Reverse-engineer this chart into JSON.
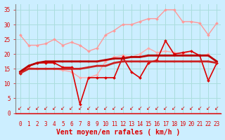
{
  "x": [
    0,
    1,
    2,
    3,
    4,
    5,
    6,
    7,
    8,
    9,
    10,
    11,
    12,
    13,
    14,
    15,
    16,
    17,
    18,
    19,
    20,
    21,
    22,
    23
  ],
  "series": [
    {
      "name": "line1_light_pink_upper",
      "color": "#ff9999",
      "lw": 1.0,
      "marker": "D",
      "markersize": 2.0,
      "y": [
        26.5,
        23.0,
        23.0,
        23.5,
        25.0,
        23.0,
        24.0,
        23.0,
        21.0,
        22.0,
        26.5,
        28.0,
        30.0,
        30.0,
        31.0,
        32.0,
        32.0,
        35.0,
        35.0,
        31.0,
        31.0,
        30.5,
        26.5,
        30.5
      ]
    },
    {
      "name": "line2_light_pink_lower",
      "color": "#ffaaaa",
      "lw": 1.0,
      "marker": "D",
      "markersize": 2.0,
      "y": [
        14.0,
        15.5,
        15.0,
        15.0,
        15.0,
        14.5,
        14.0,
        12.0,
        12.0,
        13.0,
        17.5,
        19.0,
        19.5,
        19.0,
        20.0,
        22.0,
        20.5,
        21.0,
        20.5,
        20.0,
        21.0,
        19.5,
        20.0,
        17.0
      ]
    },
    {
      "name": "line3_dark_jagged",
      "color": "#dd0000",
      "lw": 1.2,
      "marker": "D",
      "markersize": 2.0,
      "y": [
        13.5,
        16.0,
        17.0,
        17.0,
        17.0,
        15.5,
        15.5,
        3.0,
        12.0,
        12.0,
        12.0,
        12.0,
        19.0,
        14.0,
        12.0,
        17.0,
        18.0,
        24.5,
        20.0,
        20.5,
        21.0,
        19.5,
        11.0,
        17.0
      ]
    },
    {
      "name": "line4_dark_flat_upper",
      "color": "#bb0000",
      "lw": 2.0,
      "marker": "s",
      "markersize": 1.8,
      "y": [
        14.0,
        16.0,
        17.0,
        17.5,
        17.5,
        17.5,
        17.5,
        17.5,
        17.5,
        17.5,
        18.0,
        18.5,
        18.5,
        19.0,
        19.0,
        19.5,
        19.5,
        19.5,
        19.5,
        19.5,
        19.5,
        19.5,
        19.5,
        17.5
      ]
    },
    {
      "name": "line5_dark_flat_lower",
      "color": "#cc2222",
      "lw": 2.0,
      "marker": "s",
      "markersize": 1.8,
      "y": [
        13.5,
        15.0,
        15.0,
        15.0,
        15.0,
        15.0,
        15.0,
        15.0,
        15.5,
        16.0,
        16.0,
        17.0,
        17.5,
        17.5,
        17.5,
        17.5,
        17.5,
        17.5,
        17.5,
        17.5,
        17.5,
        17.5,
        17.5,
        17.0
      ]
    }
  ],
  "xlabel": "Vent moyen/en rafales ( km/h )",
  "xlim": [
    -0.5,
    23.5
  ],
  "ylim": [
    0,
    37
  ],
  "yticks": [
    0,
    5,
    10,
    15,
    20,
    25,
    30,
    35
  ],
  "xticks": [
    0,
    1,
    2,
    3,
    4,
    5,
    6,
    7,
    8,
    9,
    10,
    11,
    12,
    13,
    14,
    15,
    16,
    17,
    18,
    19,
    20,
    21,
    22,
    23
  ],
  "bg_color": "#cceeff",
  "grid_color": "#aadddd",
  "red_color": "#dd0000",
  "tick_fontsize": 5.5,
  "xlabel_fontsize": 7.0
}
